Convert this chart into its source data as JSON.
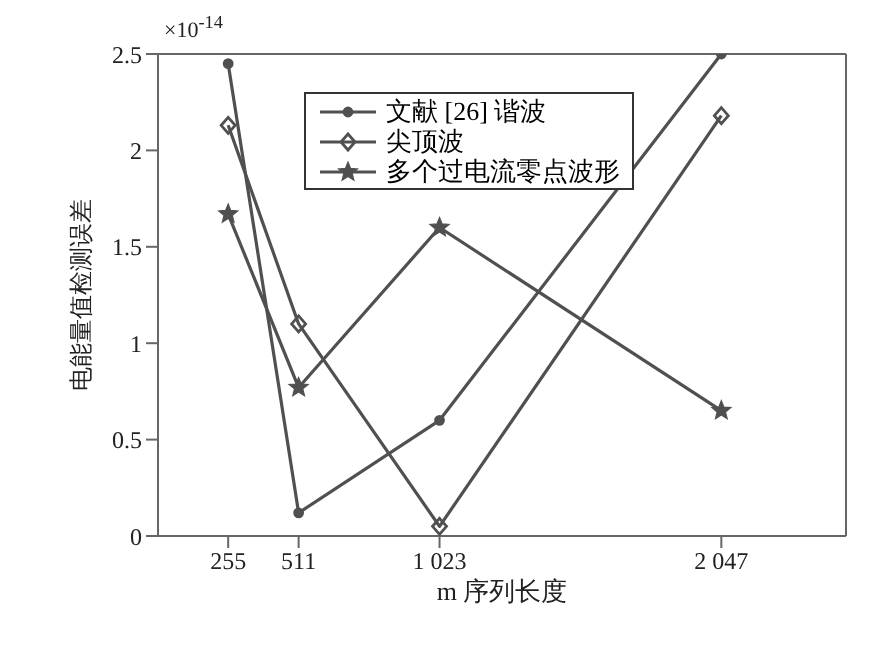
{
  "chart_data": {
    "type": "line",
    "xlabel": "m 序列长度",
    "ylabel": "电能量值检测误差",
    "annotations": [
      "×10$^{-14}$"
    ],
    "x": [
      255,
      511,
      1023,
      2047
    ],
    "xlim": [
      0,
      2500
    ],
    "xticks": [
      255,
      511,
      {
        "value": 1023,
        "label": "1 023"
      },
      {
        "value": 2047,
        "label": "2 047"
      }
    ],
    "ylim": [
      0,
      2.5
    ],
    "yticks": [
      0,
      0.5,
      1,
      1.5,
      2,
      2.5
    ],
    "grid": false,
    "legend": "top",
    "series": [
      {
        "name": "文献 [26] 谐波",
        "color": "#505050",
        "marker": "circle",
        "values": [
          2.45,
          0.12,
          0.6,
          2.5
        ]
      },
      {
        "name": "尖顶波",
        "color": "#505050",
        "marker": "diamond",
        "values": [
          2.13,
          1.1,
          0.05,
          2.18
        ]
      },
      {
        "name": "多个过电流零点波形",
        "color": "#505050",
        "marker": "star",
        "values": [
          1.67,
          0.77,
          1.6,
          0.65
        ]
      }
    ]
  }
}
